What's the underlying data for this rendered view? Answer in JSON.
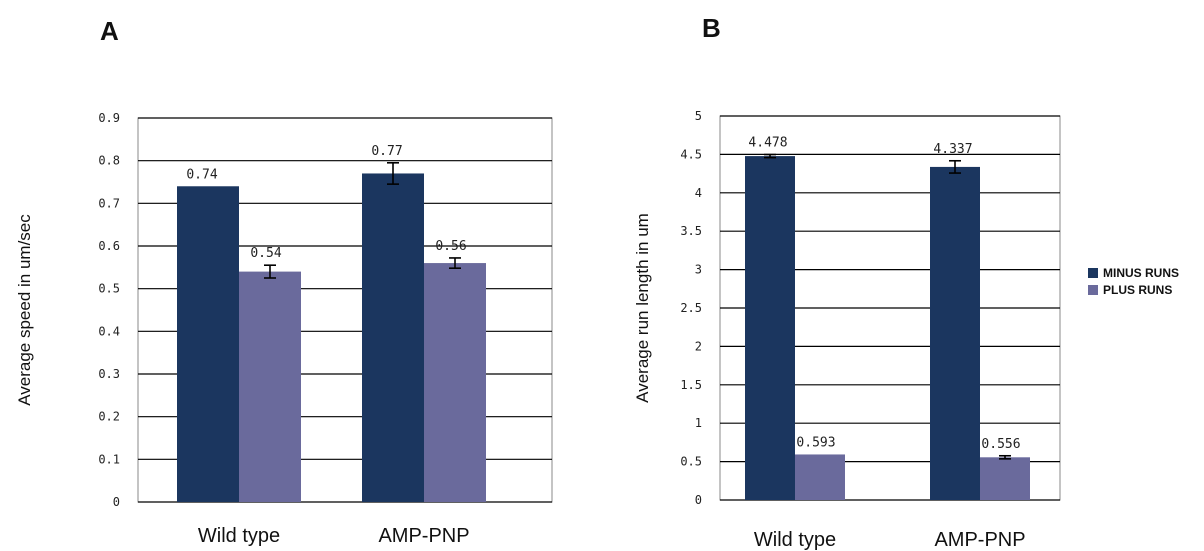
{
  "figure": {
    "legend": [
      {
        "name": "MINUS RUNS",
        "color": "#1b365f"
      },
      {
        "name": "PLUS RUNS",
        "color": "#6a6a9c"
      }
    ]
  },
  "chart_data": [
    {
      "type": "bar",
      "panel_label": "A",
      "title": "",
      "xlabel": "",
      "ylabel": "Average speed in um/sec",
      "categories": [
        "Wild type",
        "AMP-PNP"
      ],
      "ylim": [
        0,
        0.9
      ],
      "yticks": [
        0,
        0.1,
        0.2,
        0.3,
        0.4,
        0.5,
        0.6,
        0.7,
        0.8,
        0.9
      ],
      "ytick_labels": [
        "0",
        "0.1",
        "0.2",
        "0.3",
        "0.4",
        "0.5",
        "0.6",
        "0.7",
        "0.8",
        "0.9"
      ],
      "grid": "horizontal",
      "series": [
        {
          "name": "MINUS RUNS",
          "color": "#1b365f",
          "values": [
            0.74,
            0.77
          ],
          "labels": [
            "0.74",
            "0.77"
          ],
          "errors": [
            0,
            0.025
          ]
        },
        {
          "name": "PLUS RUNS",
          "color": "#6a6a9c",
          "values": [
            0.54,
            0.56
          ],
          "labels": [
            "0.54",
            "0.56"
          ],
          "errors": [
            0.015,
            0.012
          ]
        }
      ]
    },
    {
      "type": "bar",
      "panel_label": "B",
      "title": "",
      "xlabel": "",
      "ylabel": "Average run length in um",
      "categories": [
        "Wild type",
        "AMP-PNP"
      ],
      "ylim": [
        0,
        5
      ],
      "yticks": [
        0,
        0.5,
        1,
        1.5,
        2,
        2.5,
        3,
        3.5,
        4,
        4.5,
        5
      ],
      "ytick_labels": [
        "0",
        "0.5",
        "1",
        "1.5",
        "2",
        "2.5",
        "3",
        "3.5",
        "4",
        "4.5",
        "5"
      ],
      "grid": "horizontal",
      "legend": "right",
      "series": [
        {
          "name": "MINUS RUNS",
          "color": "#1b365f",
          "values": [
            4.478,
            4.337
          ],
          "labels": [
            "4.478",
            "4.337"
          ],
          "errors": [
            0.02,
            0.08
          ]
        },
        {
          "name": "PLUS RUNS",
          "color": "#6a6a9c",
          "values": [
            0.593,
            0.556
          ],
          "labels": [
            "0.593",
            "0.556"
          ],
          "errors": [
            0,
            0.02
          ]
        }
      ]
    }
  ]
}
